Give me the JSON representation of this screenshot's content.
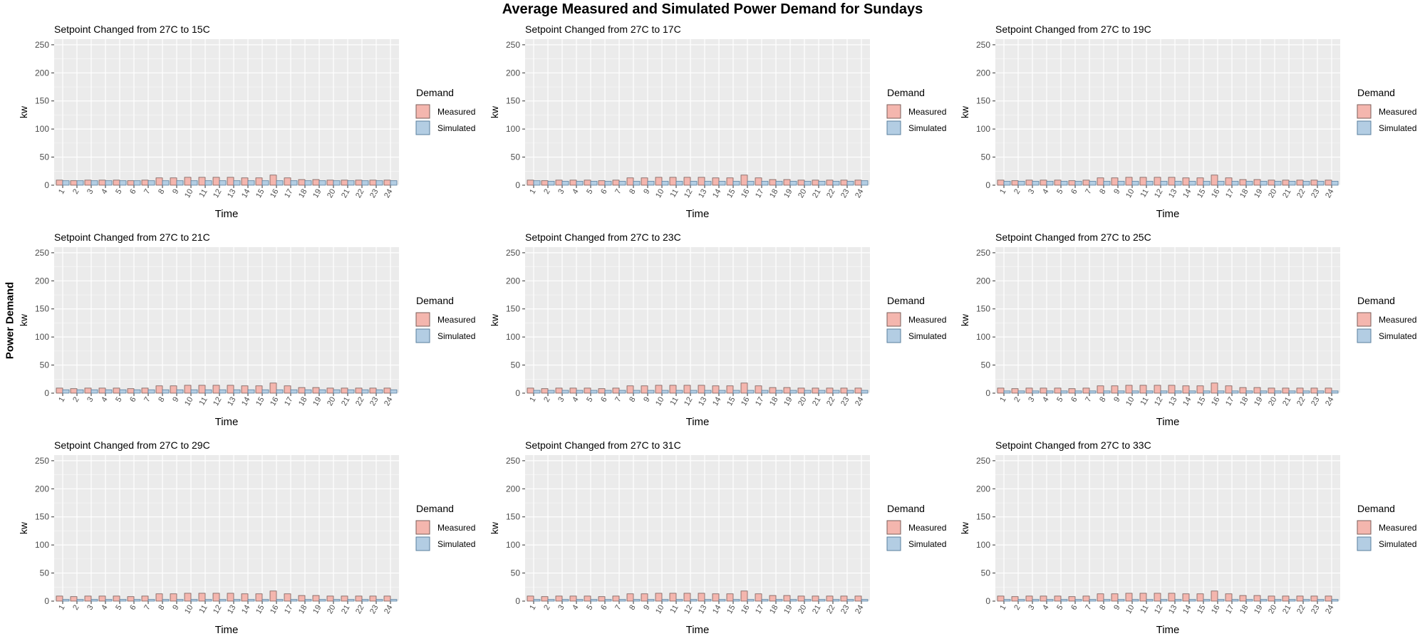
{
  "title": "Average Measured and Simulated Power Demand for Sundays",
  "y_super_label": "Power Demand",
  "colors": {
    "panel_bg": "#EBEBEB",
    "grid": "#FFFFFF",
    "measured_fill": "#F4B6AE",
    "measured_stroke": "#7A5E5A",
    "simulated_fill": "#B3CDE3",
    "simulated_stroke": "#5A7F9E"
  },
  "chart_data": [
    {
      "type": "bar",
      "title": "Setpoint Changed from 27C to 15C",
      "xlabel": "Time",
      "ylabel": "kw",
      "ylim": [
        0,
        260
      ],
      "yticks": [
        0,
        50,
        100,
        150,
        200,
        250
      ],
      "categories": [
        "1",
        "2",
        "3",
        "4",
        "5",
        "6",
        "7",
        "8",
        "9",
        "10",
        "11",
        "12",
        "13",
        "14",
        "15",
        "16",
        "17",
        "18",
        "19",
        "20",
        "21",
        "22",
        "23",
        "24"
      ],
      "series": [
        {
          "name": "Measured",
          "values": [
            9,
            8,
            9,
            9,
            9,
            8,
            9,
            13,
            13,
            14,
            14,
            14,
            14,
            13,
            13,
            18,
            13,
            10,
            10,
            9,
            9,
            9,
            9,
            9
          ]
        },
        {
          "name": "Simulated",
          "values": [
            8,
            8,
            8,
            8,
            8,
            8,
            8,
            8,
            8,
            8,
            8,
            8,
            8,
            8,
            8,
            8,
            8,
            8,
            8,
            8,
            8,
            8,
            8,
            8
          ]
        }
      ],
      "legend": {
        "title": "Demand",
        "position": "right",
        "labels": [
          "Measured",
          "Simulated"
        ]
      },
      "grid": true
    },
    {
      "type": "bar",
      "title": "Setpoint Changed from 27C to 17C",
      "xlabel": "Time",
      "ylabel": "kw",
      "ylim": [
        0,
        260
      ],
      "yticks": [
        0,
        50,
        100,
        150,
        200,
        250
      ],
      "categories": [
        "1",
        "2",
        "3",
        "4",
        "5",
        "6",
        "7",
        "8",
        "9",
        "10",
        "11",
        "12",
        "13",
        "14",
        "15",
        "16",
        "17",
        "18",
        "19",
        "20",
        "21",
        "22",
        "23",
        "24"
      ],
      "series": [
        {
          "name": "Measured",
          "values": [
            9,
            8,
            9,
            9,
            9,
            8,
            9,
            13,
            13,
            14,
            14,
            14,
            14,
            13,
            13,
            18,
            13,
            10,
            10,
            9,
            9,
            9,
            9,
            9
          ]
        },
        {
          "name": "Simulated",
          "values": [
            8,
            7,
            7,
            7,
            7,
            7,
            7,
            7,
            7,
            7,
            7,
            7,
            7,
            7,
            7,
            7,
            7,
            7,
            7,
            7,
            7,
            7,
            7,
            8
          ]
        }
      ],
      "legend": {
        "title": "Demand",
        "position": "right",
        "labels": [
          "Measured",
          "Simulated"
        ]
      },
      "grid": true
    },
    {
      "type": "bar",
      "title": "Setpoint Changed from 27C to 19C",
      "xlabel": "Time",
      "ylabel": "kw",
      "ylim": [
        0,
        260
      ],
      "yticks": [
        0,
        50,
        100,
        150,
        200,
        250
      ],
      "categories": [
        "1",
        "2",
        "3",
        "4",
        "5",
        "6",
        "7",
        "8",
        "9",
        "10",
        "11",
        "12",
        "13",
        "14",
        "15",
        "16",
        "17",
        "18",
        "19",
        "20",
        "21",
        "22",
        "23",
        "24"
      ],
      "series": [
        {
          "name": "Measured",
          "values": [
            9,
            8,
            9,
            9,
            9,
            8,
            9,
            13,
            13,
            14,
            14,
            14,
            14,
            13,
            13,
            18,
            13,
            10,
            10,
            9,
            9,
            9,
            9,
            9
          ]
        },
        {
          "name": "Simulated",
          "values": [
            7,
            7,
            7,
            7,
            7,
            7,
            7,
            7,
            7,
            7,
            7,
            7,
            7,
            7,
            7,
            7,
            7,
            7,
            7,
            7,
            7,
            7,
            7,
            7
          ]
        }
      ],
      "legend": {
        "title": "Demand",
        "position": "right",
        "labels": [
          "Measured",
          "Simulated"
        ]
      },
      "grid": true
    },
    {
      "type": "bar",
      "title": "Setpoint Changed from 27C to 21C",
      "xlabel": "Time",
      "ylabel": "kw",
      "ylim": [
        0,
        260
      ],
      "yticks": [
        0,
        50,
        100,
        150,
        200,
        250
      ],
      "categories": [
        "1",
        "2",
        "3",
        "4",
        "5",
        "6",
        "7",
        "8",
        "9",
        "10",
        "11",
        "12",
        "13",
        "14",
        "15",
        "16",
        "17",
        "18",
        "19",
        "20",
        "21",
        "22",
        "23",
        "24"
      ],
      "series": [
        {
          "name": "Measured",
          "values": [
            9,
            8,
            9,
            9,
            9,
            8,
            9,
            13,
            13,
            14,
            14,
            14,
            14,
            13,
            13,
            18,
            13,
            10,
            10,
            9,
            9,
            9,
            9,
            9
          ]
        },
        {
          "name": "Simulated",
          "values": [
            6,
            6,
            6,
            6,
            6,
            6,
            6,
            6,
            6,
            6,
            6,
            6,
            6,
            6,
            6,
            6,
            6,
            6,
            6,
            6,
            6,
            6,
            6,
            6
          ]
        }
      ],
      "legend": {
        "title": "Demand",
        "position": "right",
        "labels": [
          "Measured",
          "Simulated"
        ]
      },
      "grid": true
    },
    {
      "type": "bar",
      "title": "Setpoint Changed from 27C to 23C",
      "xlabel": "Time",
      "ylabel": "kw",
      "ylim": [
        0,
        260
      ],
      "yticks": [
        0,
        50,
        100,
        150,
        200,
        250
      ],
      "categories": [
        "1",
        "2",
        "3",
        "4",
        "5",
        "6",
        "7",
        "8",
        "9",
        "10",
        "11",
        "12",
        "13",
        "14",
        "15",
        "16",
        "17",
        "18",
        "19",
        "20",
        "21",
        "22",
        "23",
        "24"
      ],
      "series": [
        {
          "name": "Measured",
          "values": [
            9,
            8,
            9,
            9,
            9,
            8,
            9,
            13,
            13,
            14,
            14,
            14,
            14,
            13,
            13,
            18,
            13,
            10,
            10,
            9,
            9,
            9,
            9,
            9
          ]
        },
        {
          "name": "Simulated",
          "values": [
            5,
            5,
            5,
            5,
            5,
            5,
            5,
            5,
            5,
            5,
            5,
            5,
            5,
            5,
            5,
            5,
            5,
            5,
            5,
            5,
            5,
            5,
            5,
            5
          ]
        }
      ],
      "legend": {
        "title": "Demand",
        "position": "right",
        "labels": [
          "Measured",
          "Simulated"
        ]
      },
      "grid": true
    },
    {
      "type": "bar",
      "title": "Setpoint Changed from 27C to 25C",
      "xlabel": "Time",
      "ylabel": "kw",
      "ylim": [
        0,
        260
      ],
      "yticks": [
        0,
        50,
        100,
        150,
        200,
        250
      ],
      "categories": [
        "1",
        "2",
        "3",
        "4",
        "5",
        "6",
        "7",
        "8",
        "9",
        "10",
        "11",
        "12",
        "13",
        "14",
        "15",
        "16",
        "17",
        "18",
        "19",
        "20",
        "21",
        "22",
        "23",
        "24"
      ],
      "series": [
        {
          "name": "Measured",
          "values": [
            9,
            8,
            9,
            9,
            9,
            8,
            9,
            13,
            13,
            14,
            14,
            14,
            14,
            13,
            13,
            18,
            13,
            10,
            10,
            9,
            9,
            9,
            9,
            9
          ]
        },
        {
          "name": "Simulated",
          "values": [
            4,
            4,
            4,
            4,
            4,
            4,
            4,
            4,
            4,
            4,
            4,
            4,
            4,
            4,
            4,
            4,
            4,
            4,
            4,
            4,
            4,
            4,
            4,
            4
          ]
        }
      ],
      "legend": {
        "title": "Demand",
        "position": "right",
        "labels": [
          "Measured",
          "Simulated"
        ]
      },
      "grid": true
    },
    {
      "type": "bar",
      "title": "Setpoint Changed from 27C to 29C",
      "xlabel": "Time",
      "ylabel": "kw",
      "ylim": [
        0,
        260
      ],
      "yticks": [
        0,
        50,
        100,
        150,
        200,
        250
      ],
      "categories": [
        "1",
        "2",
        "3",
        "4",
        "5",
        "6",
        "7",
        "8",
        "9",
        "10",
        "11",
        "12",
        "13",
        "14",
        "15",
        "16",
        "17",
        "18",
        "19",
        "20",
        "21",
        "22",
        "23",
        "24"
      ],
      "series": [
        {
          "name": "Measured",
          "values": [
            9,
            8,
            9,
            9,
            9,
            8,
            9,
            13,
            13,
            14,
            14,
            14,
            14,
            13,
            13,
            18,
            13,
            10,
            10,
            9,
            9,
            9,
            9,
            9
          ]
        },
        {
          "name": "Simulated",
          "values": [
            3,
            3,
            3,
            3,
            3,
            3,
            3,
            3,
            3,
            3,
            3,
            3,
            3,
            3,
            3,
            3,
            3,
            3,
            3,
            3,
            3,
            3,
            3,
            3
          ]
        }
      ],
      "legend": {
        "title": "Demand",
        "position": "right",
        "labels": [
          "Measured",
          "Simulated"
        ]
      },
      "grid": true
    },
    {
      "type": "bar",
      "title": "Setpoint Changed from 27C to 31C",
      "xlabel": "Time",
      "ylabel": "kw",
      "ylim": [
        0,
        260
      ],
      "yticks": [
        0,
        50,
        100,
        150,
        200,
        250
      ],
      "categories": [
        "1",
        "2",
        "3",
        "4",
        "5",
        "6",
        "7",
        "8",
        "9",
        "10",
        "11",
        "12",
        "13",
        "14",
        "15",
        "16",
        "17",
        "18",
        "19",
        "20",
        "21",
        "22",
        "23",
        "24"
      ],
      "series": [
        {
          "name": "Measured",
          "values": [
            9,
            8,
            9,
            9,
            9,
            8,
            9,
            13,
            13,
            14,
            14,
            14,
            14,
            13,
            13,
            18,
            13,
            10,
            10,
            9,
            9,
            9,
            9,
            9
          ]
        },
        {
          "name": "Simulated",
          "values": [
            3,
            3,
            3,
            3,
            3,
            3,
            3,
            3,
            3,
            3,
            3,
            3,
            3,
            3,
            3,
            3,
            3,
            3,
            3,
            3,
            3,
            3,
            3,
            3
          ]
        }
      ],
      "legend": {
        "title": "Demand",
        "position": "right",
        "labels": [
          "Measured",
          "Simulated"
        ]
      },
      "grid": true
    },
    {
      "type": "bar",
      "title": "Setpoint Changed from 27C to 33C",
      "xlabel": "Time",
      "ylabel": "kw",
      "ylim": [
        0,
        260
      ],
      "yticks": [
        0,
        50,
        100,
        150,
        200,
        250
      ],
      "categories": [
        "1",
        "2",
        "3",
        "4",
        "5",
        "6",
        "7",
        "8",
        "9",
        "10",
        "11",
        "12",
        "13",
        "14",
        "15",
        "16",
        "17",
        "18",
        "19",
        "20",
        "21",
        "22",
        "23",
        "24"
      ],
      "series": [
        {
          "name": "Measured",
          "values": [
            9,
            8,
            9,
            9,
            9,
            8,
            9,
            13,
            13,
            14,
            14,
            14,
            14,
            13,
            13,
            18,
            13,
            10,
            10,
            9,
            9,
            9,
            9,
            9
          ]
        },
        {
          "name": "Simulated",
          "values": [
            3,
            3,
            3,
            3,
            3,
            3,
            3,
            3,
            3,
            3,
            3,
            3,
            3,
            3,
            3,
            3,
            3,
            3,
            3,
            3,
            3,
            3,
            3,
            3
          ]
        }
      ],
      "legend": {
        "title": "Demand",
        "position": "right",
        "labels": [
          "Measured",
          "Simulated"
        ]
      },
      "grid": true
    }
  ]
}
